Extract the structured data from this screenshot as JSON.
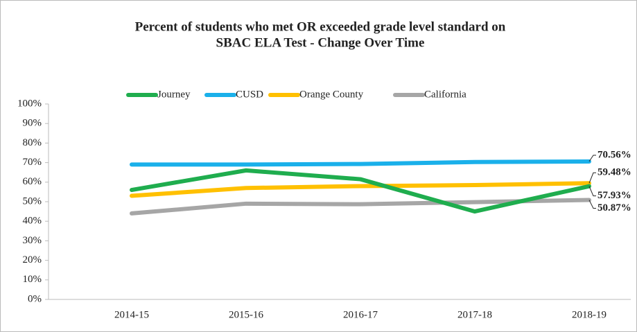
{
  "chart_data": {
    "type": "line",
    "title": [
      "Percent of  students who met OR exceeded grade level standard on",
      "SBAC ELA Test - Change Over Time"
    ],
    "categories": [
      "2014-15",
      "2015-16",
      "2016-17",
      "2017-18",
      "2018-19"
    ],
    "series": [
      {
        "name": "Journey",
        "color": "#1fad4e",
        "values": [
          56,
          66,
          61.5,
          45,
          57.93
        ],
        "value_labels": [
          null,
          null,
          null,
          null,
          "57.93%"
        ]
      },
      {
        "name": "CUSD",
        "color": "#1ab0ea",
        "values": [
          69,
          69,
          69.3,
          70.3,
          70.56
        ],
        "value_labels": [
          null,
          null,
          null,
          null,
          "70.56%"
        ]
      },
      {
        "name": "Orange County",
        "color": "#ffc000",
        "values": [
          53,
          57,
          58,
          58.5,
          59.48
        ],
        "value_labels": [
          null,
          null,
          null,
          null,
          "59.48%"
        ]
      },
      {
        "name": "California",
        "color": "#a6a6a6",
        "values": [
          44,
          49,
          48.7,
          49.8,
          50.87
        ],
        "value_labels": [
          null,
          null,
          null,
          null,
          "50.87%"
        ]
      }
    ],
    "ylim": [
      0,
      100
    ],
    "yticks": [
      {
        "value": 0,
        "label": "0%"
      },
      {
        "value": 10,
        "label": "10%"
      },
      {
        "value": 20,
        "label": "20%"
      },
      {
        "value": 30,
        "label": "30%"
      },
      {
        "value": 40,
        "label": "40%"
      },
      {
        "value": 50,
        "label": "50%"
      },
      {
        "value": 60,
        "label": "60%"
      },
      {
        "value": 70,
        "label": "70%"
      },
      {
        "value": 80,
        "label": "80%"
      },
      {
        "value": 90,
        "label": "90%"
      },
      {
        "value": 100,
        "label": "100%"
      }
    ],
    "legend": "top",
    "grid": false
  }
}
